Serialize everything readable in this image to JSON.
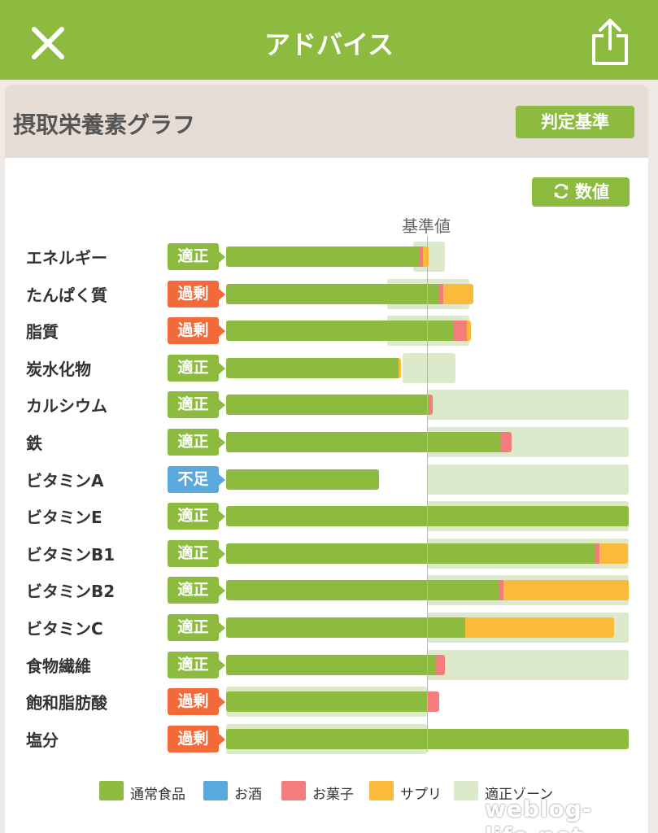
{
  "header": {
    "title": "アドバイス"
  },
  "card": {
    "title": "摂取栄養素グラフ",
    "criteria_label": "判定基準",
    "numbers_label": "数値",
    "reference_label": "基準値"
  },
  "colors": {
    "header": "#8cbb3f",
    "food": "#8cbb3f",
    "alcohol": "#5aa9dc",
    "snack": "#f47c7c",
    "supplement": "#fbbb3a",
    "zone": "#dce9cb",
    "status_ok": "#8cbb3f",
    "status_over": "#f26a3a",
    "status_under": "#5aa9dc"
  },
  "chart_data": {
    "type": "bar",
    "stacked": true,
    "reference_line_label": "基準値",
    "categories": [
      "エネルギー",
      "たんぱく質",
      "脂質",
      "炭水化物",
      "カルシウム",
      "鉄",
      "ビタミンA",
      "ビタミンE",
      "ビタミンB1",
      "ビタミンB2",
      "ビタミンC",
      "食物繊維",
      "飽和脂肪酸",
      "塩分"
    ],
    "status": [
      "適正",
      "過剰",
      "過剰",
      "適正",
      "適正",
      "適正",
      "不足",
      "適正",
      "適正",
      "適正",
      "適正",
      "適正",
      "過剰",
      "過剰"
    ],
    "series": [
      {
        "name": "通常食品",
        "values": [
          96,
          106,
          113,
          86,
          101,
          137,
          76,
          201,
          184,
          136,
          119,
          104,
          100,
          201
        ]
      },
      {
        "name": "お酒",
        "values": [
          0,
          0,
          0,
          0,
          0,
          0,
          0,
          0,
          0,
          0,
          0,
          0,
          0,
          0
        ]
      },
      {
        "name": "お菓子",
        "values": [
          2,
          2,
          7,
          0,
          2,
          5,
          0,
          0,
          2,
          2,
          0,
          5,
          6,
          0
        ]
      },
      {
        "name": "サプリ",
        "values": [
          3,
          15,
          2,
          1,
          0,
          0,
          0,
          0,
          14,
          63,
          74,
          0,
          0,
          0
        ]
      }
    ],
    "ok_zone": [
      [
        93,
        109
      ],
      [
        80,
        121
      ],
      [
        80,
        121
      ],
      [
        88,
        114
      ],
      [
        100,
        201
      ],
      [
        100,
        201
      ],
      [
        100,
        201
      ],
      [
        100,
        201
      ],
      [
        100,
        201
      ],
      [
        100,
        201
      ],
      [
        100,
        201
      ],
      [
        100,
        201
      ],
      [
        0,
        100
      ],
      [
        0,
        100
      ]
    ],
    "reference_value": 100,
    "legend": [
      "通常食品",
      "お酒",
      "お菓子",
      "サプリ",
      "適正ゾーン"
    ],
    "grid": false,
    "legend_position": "bottom"
  },
  "watermark": "weblog-life.net"
}
